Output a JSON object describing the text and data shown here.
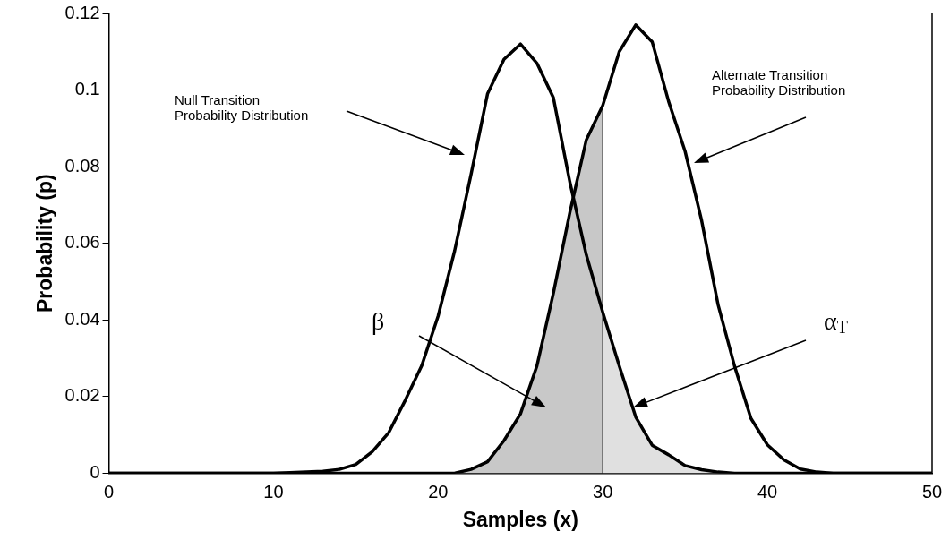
{
  "chart_data": {
    "type": "line",
    "xlabel": "Samples (x)",
    "ylabel": "Probability (p)",
    "xlim": [
      0,
      50
    ],
    "xticks": [
      0,
      10,
      20,
      30,
      40,
      50
    ],
    "ylim": [
      0,
      0.12
    ],
    "yticks": [
      0,
      0.02,
      0.04,
      0.06,
      0.08,
      0.1,
      0.12
    ],
    "grid": false,
    "legend": false,
    "marker": "none",
    "line_style": "solid",
    "series": [
      {
        "type": "area",
        "color": "#c8c8c8",
        "x": [
          21,
          22,
          23,
          24,
          25,
          26,
          27,
          28,
          29,
          30,
          30
        ],
        "values": [
          0,
          0.001,
          0.003,
          0.0085,
          0.0155,
          0.028,
          0.047,
          0.068,
          0.087,
          0.096,
          0
        ]
      },
      {
        "type": "area",
        "color": "#e0e0e0",
        "x": [
          30,
          31,
          32,
          33,
          34,
          35,
          36,
          37,
          38
        ],
        "values": [
          0.042,
          0.028,
          0.0147,
          0.0073,
          0.0048,
          0.002,
          0.0009,
          0.0003,
          0
        ]
      },
      {
        "color": "#000000",
        "x": [
          0,
          10,
          12,
          13,
          14,
          15,
          16,
          17,
          18,
          19,
          20,
          21,
          22,
          23,
          24,
          25,
          26,
          27,
          28,
          29,
          30,
          31,
          32,
          33,
          34,
          35,
          36,
          37,
          38,
          50
        ],
        "values": [
          0,
          0,
          0.0003,
          0.0005,
          0.001,
          0.0023,
          0.0056,
          0.0106,
          0.019,
          0.028,
          0.041,
          0.058,
          0.078,
          0.099,
          0.108,
          0.112,
          0.107,
          0.098,
          0.076,
          0.057,
          0.042,
          0.028,
          0.0147,
          0.0073,
          0.0048,
          0.002,
          0.0009,
          0.0003,
          0,
          0
        ]
      },
      {
        "color": "#000000",
        "x": [
          0,
          19,
          21,
          22,
          23,
          24,
          25,
          26,
          27,
          28,
          29,
          30,
          31,
          32,
          33,
          34,
          35,
          36,
          37,
          38,
          39,
          40,
          41,
          42,
          43,
          44,
          50
        ],
        "values": [
          0,
          0,
          0,
          0.001,
          0.003,
          0.0085,
          0.0155,
          0.028,
          0.047,
          0.068,
          0.087,
          0.096,
          0.11,
          0.117,
          0.1126,
          0.097,
          0.084,
          0.066,
          0.044,
          0.028,
          0.0143,
          0.0074,
          0.0035,
          0.0011,
          0.0003,
          0,
          0
        ]
      }
    ],
    "annotations": [
      "Null Transition\nProbability Distribution",
      "Alternate Transition\nProbability Distribution",
      "β",
      "α$_{T}$"
    ]
  }
}
